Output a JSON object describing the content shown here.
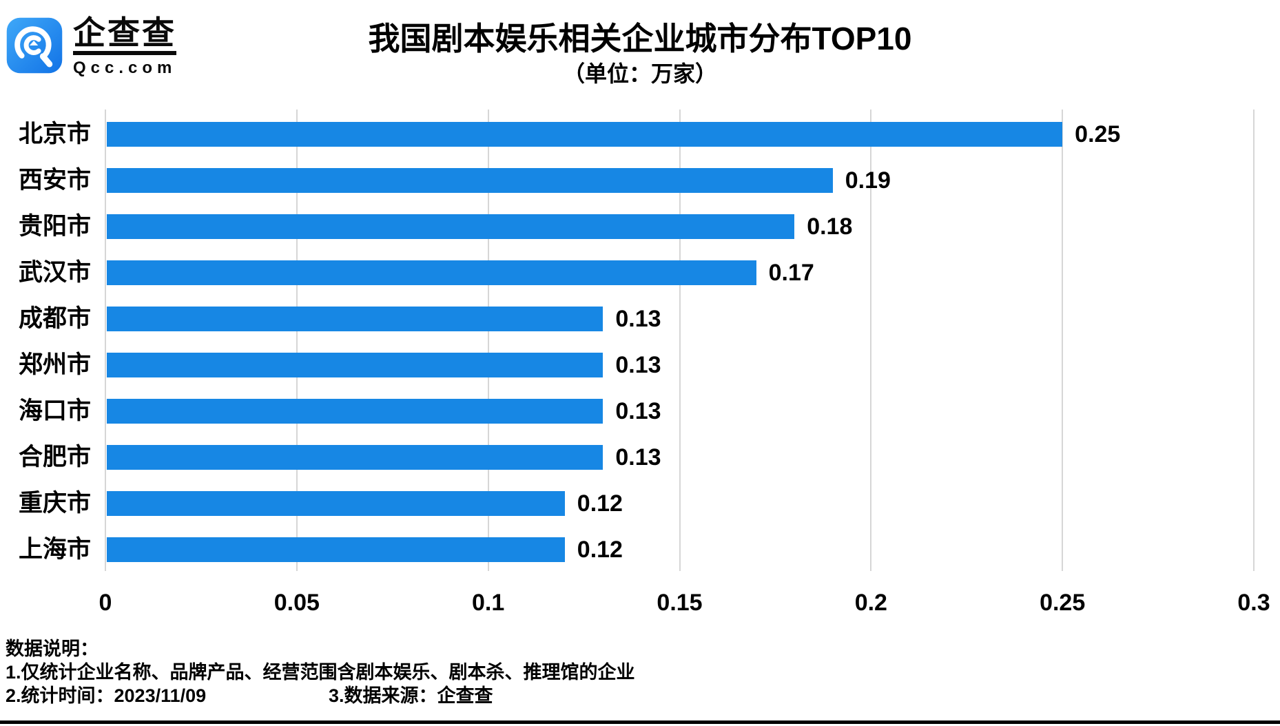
{
  "logo": {
    "wordmark": "企查查",
    "domain": "Qcc.com",
    "icon": "qcc-magnifier-icon",
    "icon_color_top": "#3fa8f8",
    "icon_color_bottom": "#1273e6"
  },
  "title": "我国剧本娱乐相关企业城市分布TOP10",
  "subtitle": "（单位：万家）",
  "chart_data": {
    "type": "bar",
    "orientation": "horizontal",
    "title": "我国剧本娱乐相关企业城市分布TOP10",
    "unit": "万家",
    "categories": [
      "北京市",
      "西安市",
      "贵阳市",
      "武汉市",
      "成都市",
      "郑州市",
      "海口市",
      "合肥市",
      "重庆市",
      "上海市"
    ],
    "values": [
      0.25,
      0.19,
      0.18,
      0.17,
      0.13,
      0.13,
      0.13,
      0.13,
      0.12,
      0.12
    ],
    "value_labels": [
      "0.25",
      "0.19",
      "0.18",
      "0.17",
      "0.13",
      "0.13",
      "0.13",
      "0.13",
      "0.12",
      "0.12"
    ],
    "xlim": [
      0,
      0.3
    ],
    "xticks": [
      0,
      0.05,
      0.1,
      0.15,
      0.2,
      0.25,
      0.3
    ],
    "xtick_labels": [
      "0",
      "0.05",
      "0.1",
      "0.15",
      "0.2",
      "0.25",
      "0.3"
    ],
    "grid": true,
    "legend": false,
    "bar_color": "#1787e4",
    "gridline_color": "#d6d6d6"
  },
  "footer": {
    "heading": "数据说明：",
    "line1": "1.仅统计企业名称、品牌产品、经营范围含剧本娱乐、剧本杀、推理馆的企业",
    "line2a": "2.统计时间：2023/11/09",
    "line2b": "3.数据来源：企查查"
  }
}
